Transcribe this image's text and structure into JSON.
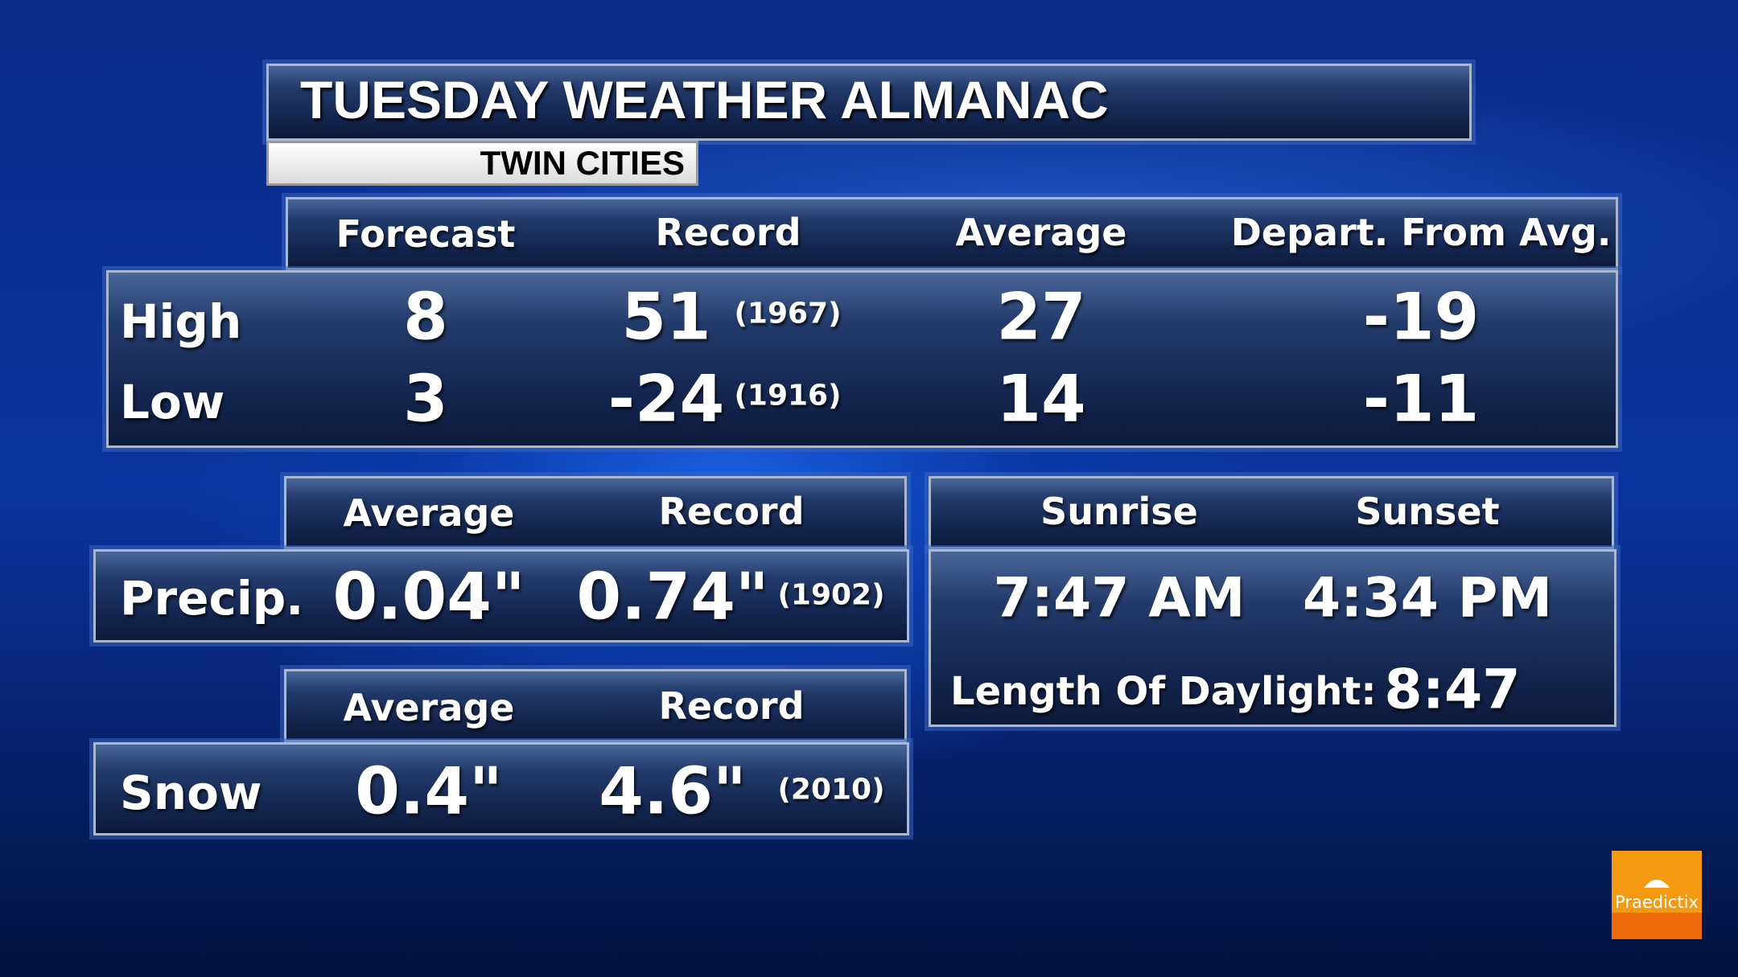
{
  "title": "TUESDAY WEATHER ALMANAC",
  "location": "TWIN CITIES",
  "temps": {
    "headers": [
      "Forecast",
      "Record",
      "Average",
      "Depart. From Avg."
    ],
    "rows": [
      {
        "label": "High",
        "forecast": "8",
        "record": "51",
        "record_year": "(1967)",
        "average": "27",
        "departure": "-19"
      },
      {
        "label": "Low",
        "forecast": "3",
        "record": "-24",
        "record_year": "(1916)",
        "average": "14",
        "departure": "-11"
      }
    ]
  },
  "precip": {
    "headers": [
      "Average",
      "Record"
    ],
    "label": "Precip.",
    "average": "0.04\"",
    "record": "0.74\"",
    "record_year": "(1902)"
  },
  "snow": {
    "headers": [
      "Average",
      "Record"
    ],
    "label": "Snow",
    "average": "0.4\"",
    "record": "4.6\"",
    "record_year": "(2010)"
  },
  "sun": {
    "headers": [
      "Sunrise",
      "Sunset"
    ],
    "sunrise": "7:47 AM",
    "sunset": "4:34 PM",
    "daylight_label": "Length Of Daylight:",
    "daylight": "8:47"
  },
  "logo": {
    "text": "Praedictix",
    "color": "#f39a10"
  }
}
